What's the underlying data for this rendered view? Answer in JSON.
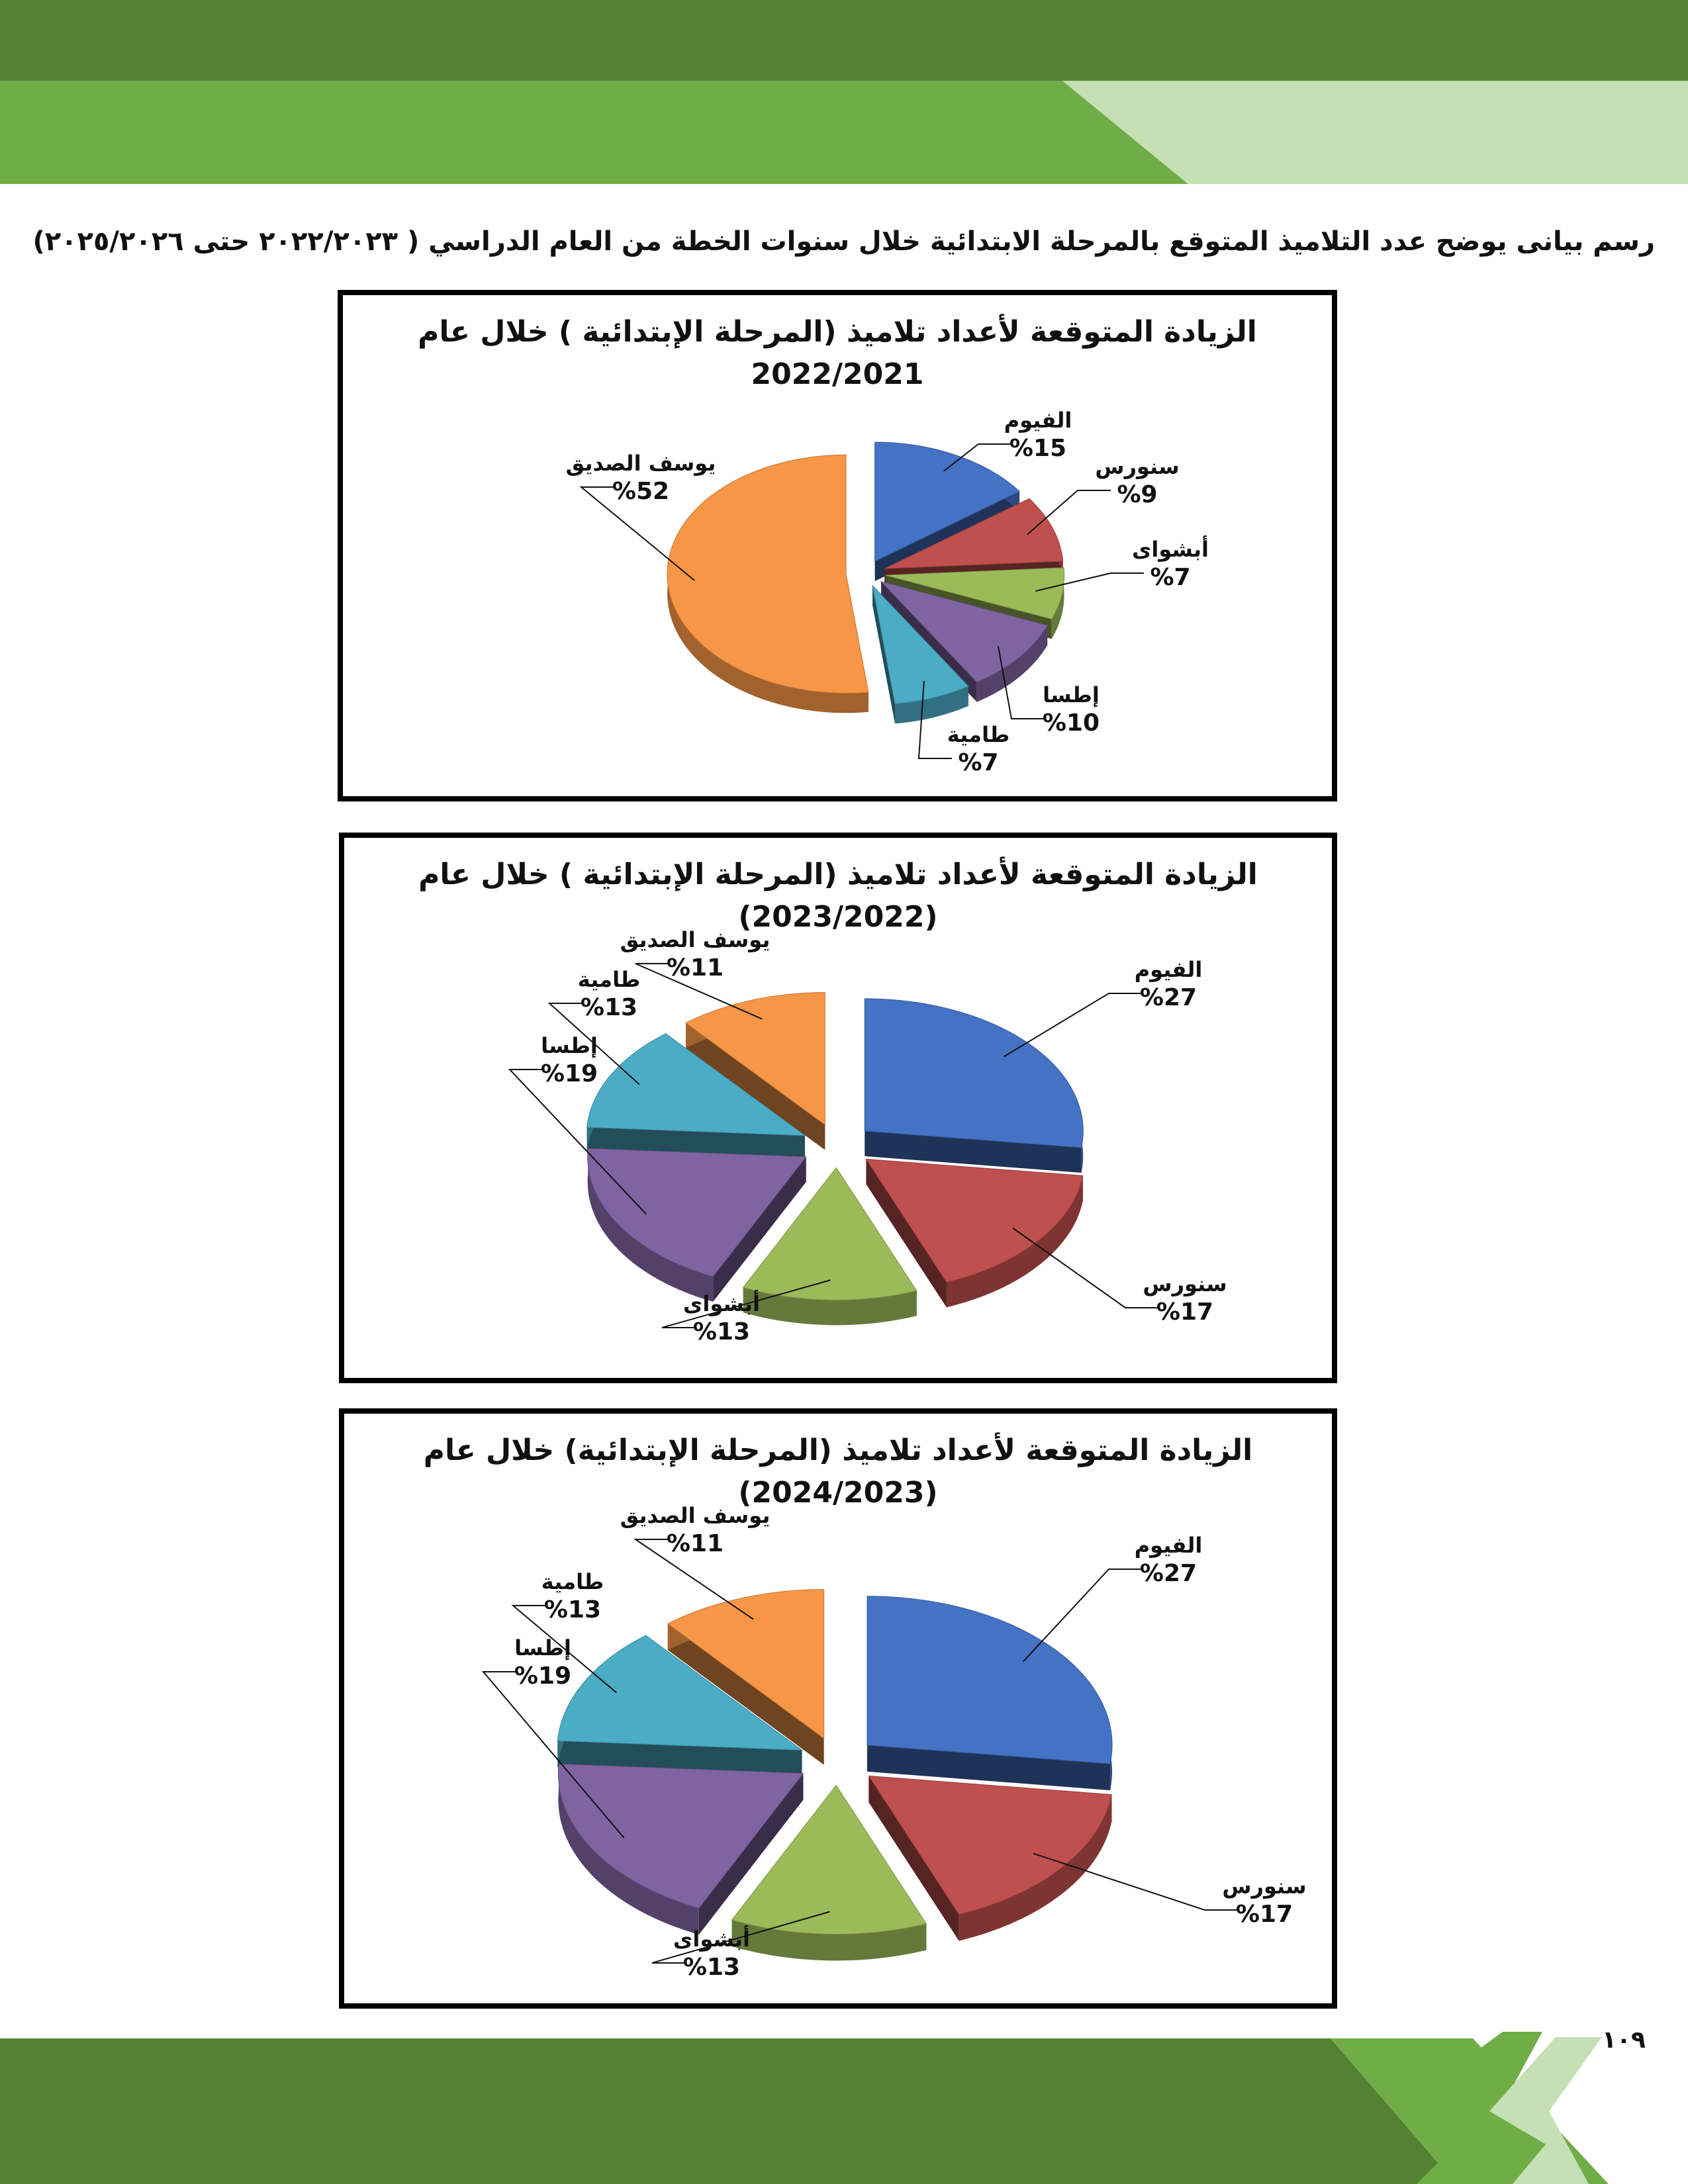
{
  "page": {
    "heading": "رسم بيانى  يوضح عدد التلاميذ المتوقع بالمرحلة الابتدائية خلال سنوات الخطة من العام الدراسي  (  ٢٠٢٢/٢٠٢٣ حتى ٢٠٢٥/٢٠٢٦)",
    "page_number": "١٠٩",
    "colors": {
      "dark_green": "#548235",
      "mid_green": "#70AD47",
      "light_green": "#C5E0B4"
    }
  },
  "chart_data": [
    {
      "type": "pie",
      "title": "الزيادة المتوقعة لأعداد تلاميذ (المرحلة الإبتدائية ) خلال عام",
      "subtitle": "2022/2021",
      "slices": [
        {
          "label": "الفيوم",
          "value": 15,
          "display": "%15",
          "color": "#4472C4"
        },
        {
          "label": "سنورس",
          "value": 9,
          "display": "%9",
          "color": "#C0504D"
        },
        {
          "label": "أبشواى",
          "value": 7,
          "display": "%7",
          "color": "#9BBB59"
        },
        {
          "label": "إطسا",
          "value": 10,
          "display": "%10",
          "color": "#8064A2"
        },
        {
          "label": "طامية",
          "value": 7,
          "display": "%7",
          "color": "#4BACC6"
        },
        {
          "label": "يوسف الصديق",
          "value": 52,
          "display": "%52",
          "color": "#F79646"
        }
      ]
    },
    {
      "type": "pie",
      "title": "الزيادة المتوقعة لأعداد تلاميذ (المرحلة الإبتدائية ) خلال عام",
      "subtitle": "(2023/2022)",
      "slices": [
        {
          "label": "الفيوم",
          "value": 27,
          "display": "%27",
          "color": "#4472C4"
        },
        {
          "label": "سنورس",
          "value": 17,
          "display": "%17",
          "color": "#C0504D"
        },
        {
          "label": "أبشواى",
          "value": 13,
          "display": "%13",
          "color": "#9BBB59"
        },
        {
          "label": "إطسا",
          "value": 19,
          "display": "%19",
          "color": "#8064A2"
        },
        {
          "label": "طامية",
          "value": 13,
          "display": "%13",
          "color": "#4BACC6"
        },
        {
          "label": "يوسف الصديق",
          "value": 11,
          "display": "%11",
          "color": "#F79646"
        }
      ]
    },
    {
      "type": "pie",
      "title": "الزيادة المتوقعة لأعداد تلاميذ (المرحلة الإبتدائية)  خلال عام",
      "subtitle": "(2024/2023)",
      "slices": [
        {
          "label": "الفيوم",
          "value": 27,
          "display": "%27",
          "color": "#4472C4"
        },
        {
          "label": "سنورس",
          "value": 17,
          "display": "%17",
          "color": "#C0504D"
        },
        {
          "label": "أبشواى",
          "value": 13,
          "display": "%13",
          "color": "#9BBB59"
        },
        {
          "label": "إطسا",
          "value": 19,
          "display": "%19",
          "color": "#8064A2"
        },
        {
          "label": "طامية",
          "value": 13,
          "display": "%13",
          "color": "#4BACC6"
        },
        {
          "label": "يوسف الصديق",
          "value": 11,
          "display": "%11",
          "color": "#F79646"
        }
      ]
    }
  ]
}
